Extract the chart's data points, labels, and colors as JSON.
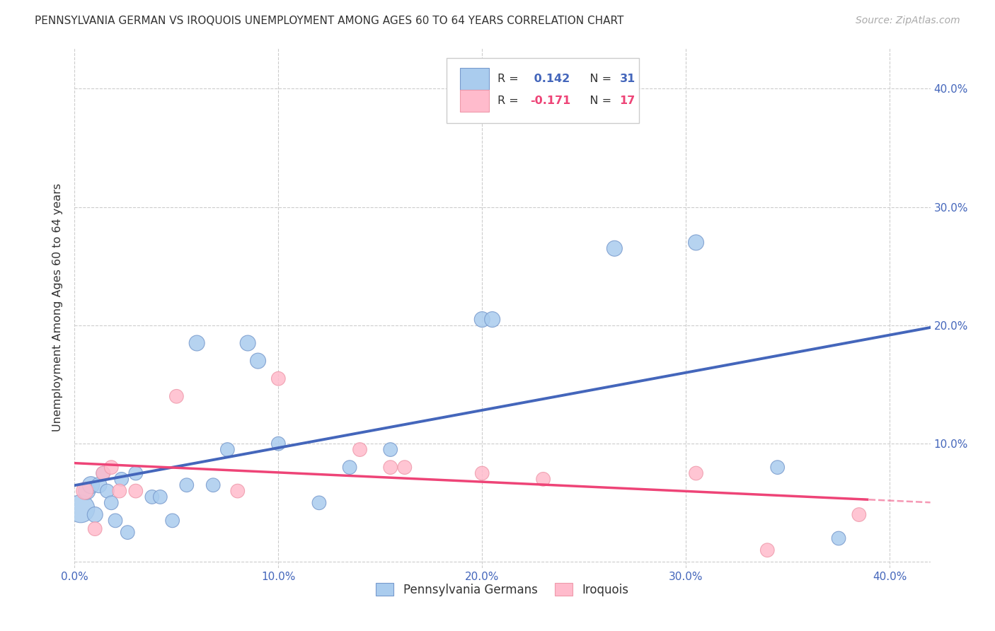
{
  "title": "PENNSYLVANIA GERMAN VS IROQUOIS UNEMPLOYMENT AMONG AGES 60 TO 64 YEARS CORRELATION CHART",
  "source": "Source: ZipAtlas.com",
  "ylabel": "Unemployment Among Ages 60 to 64 years",
  "xlim": [
    0.0,
    0.42
  ],
  "ylim": [
    -0.005,
    0.435
  ],
  "xticks": [
    0.0,
    0.1,
    0.2,
    0.3,
    0.4
  ],
  "yticks": [
    0.0,
    0.1,
    0.2,
    0.3,
    0.4
  ],
  "xticklabels": [
    "0.0%",
    "10.0%",
    "20.0%",
    "30.0%",
    "40.0%"
  ],
  "yticklabels_right": [
    "10.0%",
    "20.0%",
    "30.0%",
    "40.0%"
  ],
  "grid_color": "#cccccc",
  "background_color": "#ffffff",
  "blue_color": "#aaccee",
  "blue_edge_color": "#7799cc",
  "pink_color": "#ffbbcc",
  "pink_edge_color": "#ee99aa",
  "blue_line_color": "#4466bb",
  "pink_line_color": "#ee4477",
  "legend_bottom_blue": "Pennsylvania Germans",
  "legend_bottom_pink": "Iroquois",
  "blue_R_str": "0.142",
  "blue_N_str": "31",
  "pink_R_str": "-0.171",
  "pink_N_str": "17",
  "blue_scatter_x": [
    0.003,
    0.006,
    0.008,
    0.01,
    0.012,
    0.014,
    0.016,
    0.018,
    0.02,
    0.023,
    0.026,
    0.03,
    0.038,
    0.042,
    0.048,
    0.055,
    0.06,
    0.068,
    0.075,
    0.085,
    0.09,
    0.1,
    0.12,
    0.135,
    0.155,
    0.2,
    0.205,
    0.265,
    0.305,
    0.345,
    0.375
  ],
  "blue_scatter_y": [
    0.045,
    0.06,
    0.065,
    0.04,
    0.065,
    0.075,
    0.06,
    0.05,
    0.035,
    0.07,
    0.025,
    0.075,
    0.055,
    0.055,
    0.035,
    0.065,
    0.185,
    0.065,
    0.095,
    0.185,
    0.17,
    0.1,
    0.05,
    0.08,
    0.095,
    0.205,
    0.205,
    0.265,
    0.27,
    0.08,
    0.02
  ],
  "blue_scatter_size": [
    800,
    300,
    300,
    250,
    250,
    200,
    200,
    200,
    200,
    200,
    200,
    200,
    200,
    200,
    200,
    200,
    250,
    200,
    200,
    250,
    250,
    200,
    200,
    200,
    200,
    250,
    250,
    250,
    250,
    200,
    200
  ],
  "pink_scatter_x": [
    0.005,
    0.01,
    0.014,
    0.018,
    0.022,
    0.03,
    0.05,
    0.08,
    0.1,
    0.14,
    0.155,
    0.162,
    0.2,
    0.23,
    0.305,
    0.34,
    0.385
  ],
  "pink_scatter_y": [
    0.06,
    0.028,
    0.075,
    0.08,
    0.06,
    0.06,
    0.14,
    0.06,
    0.155,
    0.095,
    0.08,
    0.08,
    0.075,
    0.07,
    0.075,
    0.01,
    0.04
  ],
  "pink_scatter_size": [
    300,
    200,
    200,
    200,
    200,
    200,
    200,
    200,
    200,
    200,
    200,
    200,
    200,
    200,
    200,
    200,
    200
  ]
}
